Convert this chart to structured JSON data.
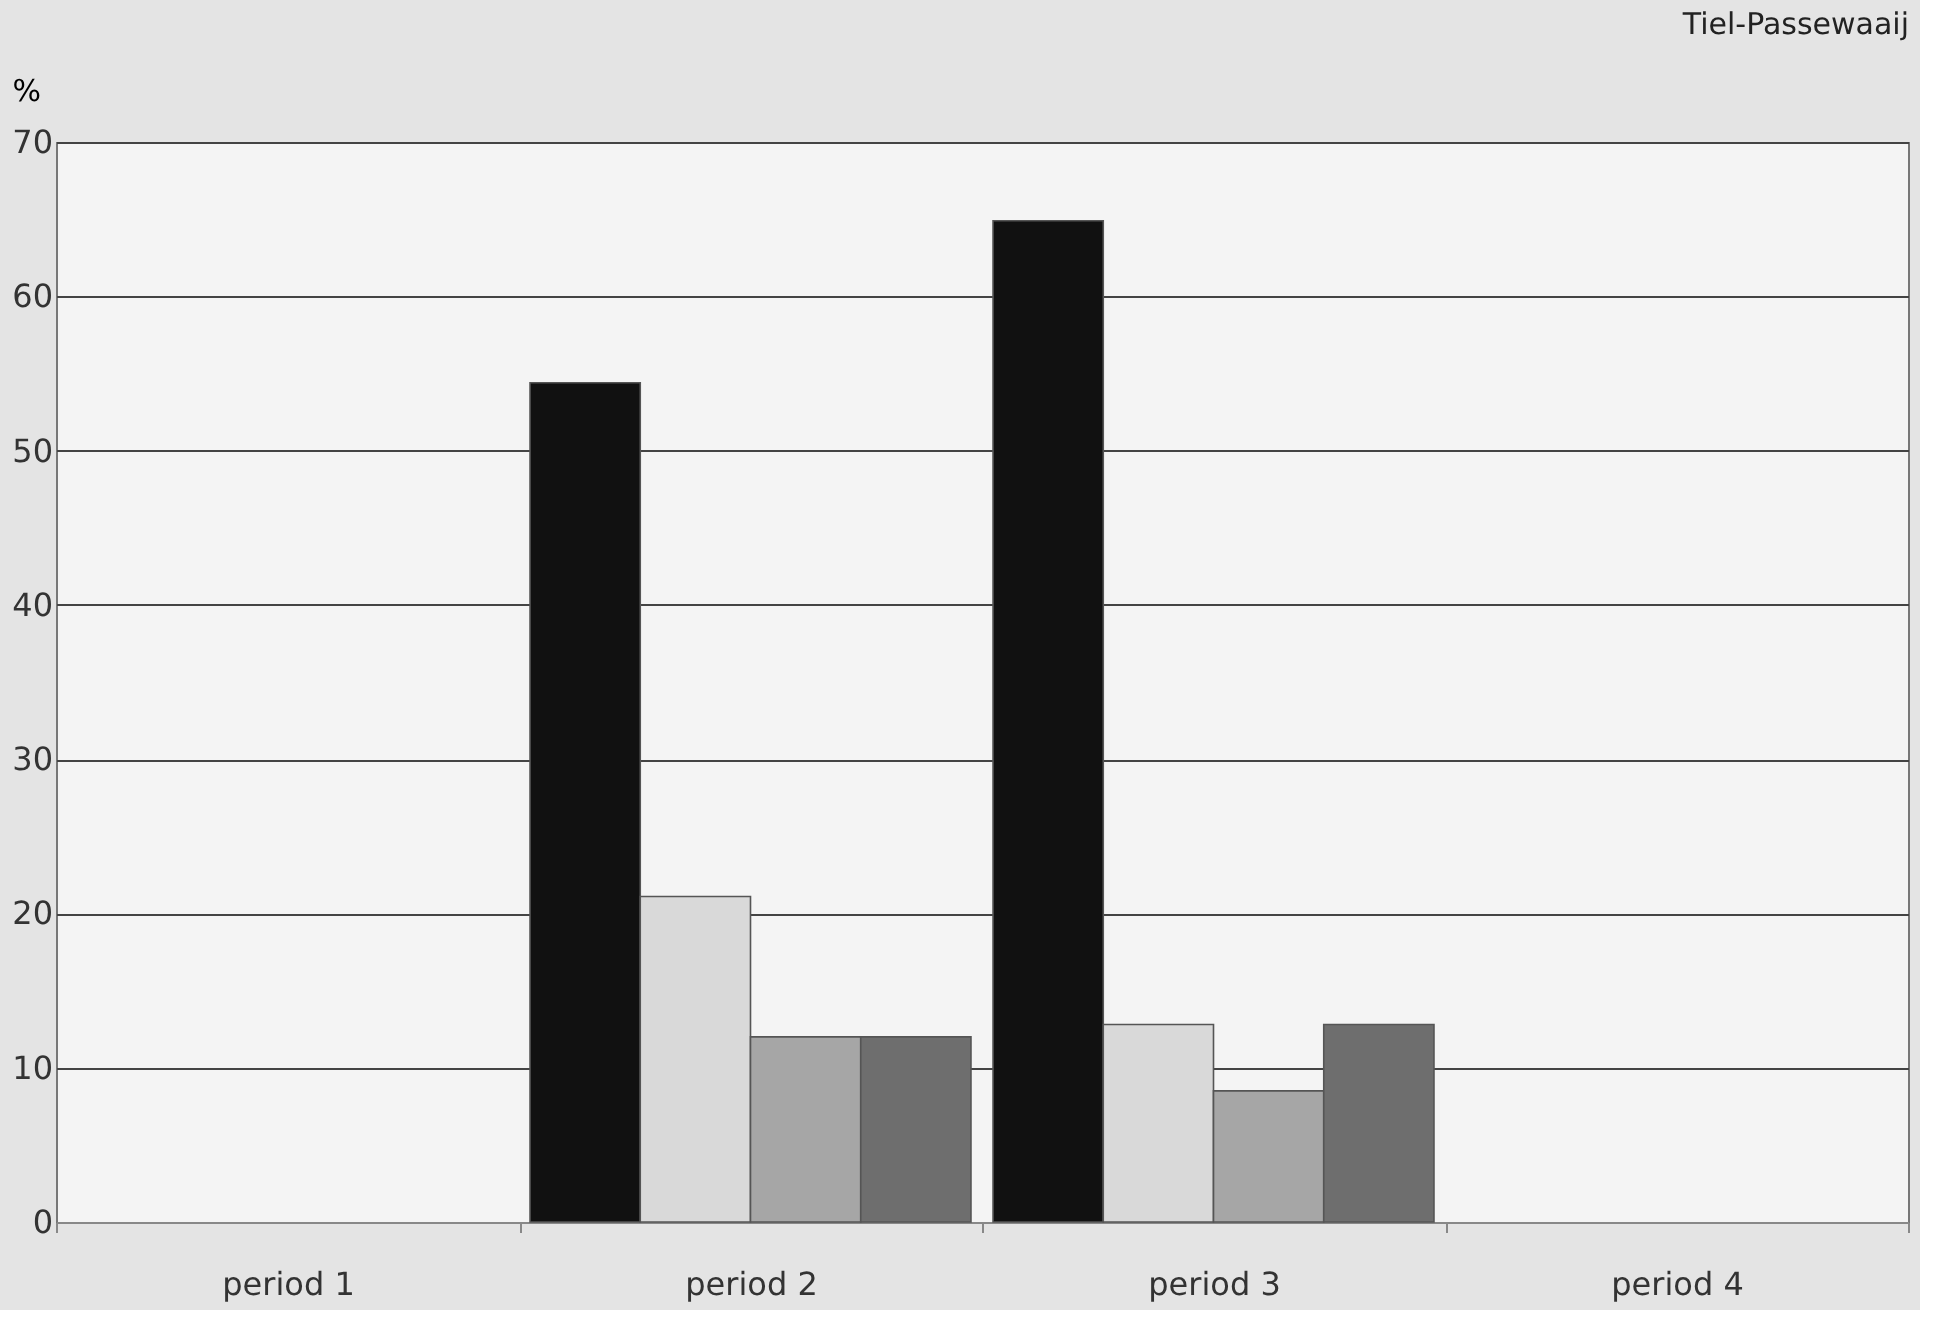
{
  "chart_data": {
    "type": "bar",
    "title": "Tiel-Passewaaij",
    "ylabel": "%",
    "categories": [
      "period 1",
      "period 2",
      "period 3",
      "period 4"
    ],
    "series": [
      {
        "color": "#111111",
        "values": [
          null,
          54.4,
          64.9,
          null
        ]
      },
      {
        "color": "#d9d9d9",
        "values": [
          null,
          21.1,
          12.8,
          null
        ]
      },
      {
        "color": "#a6a6a6",
        "values": [
          null,
          12.0,
          8.5,
          null
        ]
      },
      {
        "color": "#6e6e6e",
        "values": [
          null,
          12.0,
          12.8,
          null
        ]
      }
    ],
    "ylim": [
      0,
      70
    ],
    "yticks": [
      0,
      10,
      20,
      30,
      40,
      50,
      60,
      70
    ],
    "grid": "y",
    "legend": false
  }
}
